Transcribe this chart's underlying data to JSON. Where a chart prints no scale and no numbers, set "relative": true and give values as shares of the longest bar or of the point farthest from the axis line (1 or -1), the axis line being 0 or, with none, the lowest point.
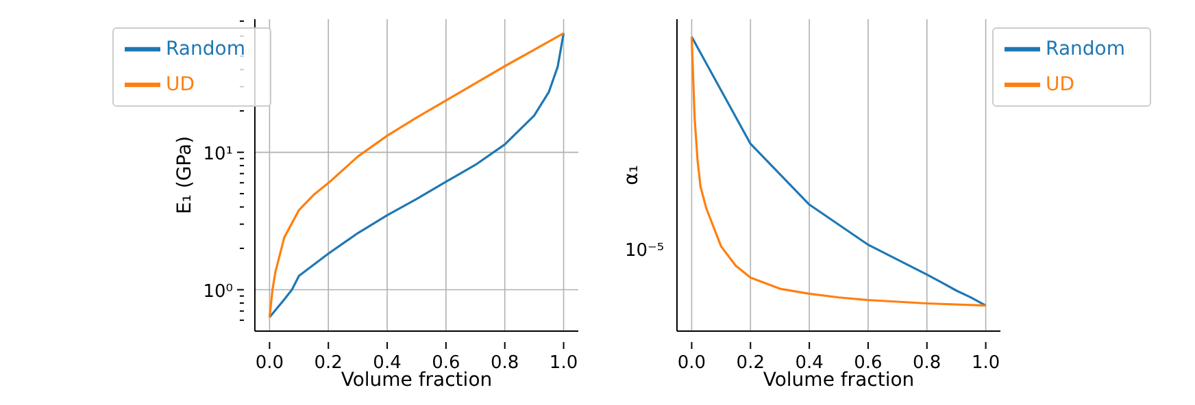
{
  "chart_data": [
    {
      "type": "line",
      "xlabel": "Volume fraction",
      "ylabel": "E₁ (GPa)",
      "log": "y",
      "grid": true,
      "legend": "top left",
      "xlim": [
        -0.05,
        1.05
      ],
      "xticks": [
        {
          "value": 0,
          "label": "0.0"
        },
        {
          "value": 0.2,
          "label": "0.2"
        },
        {
          "value": 0.4,
          "label": "0.4"
        },
        {
          "value": 0.6,
          "label": "0.6"
        },
        {
          "value": 0.8,
          "label": "0.8"
        },
        {
          "value": 1,
          "label": "1.0"
        }
      ],
      "ylim": [
        0.5,
        93
      ],
      "yticks": [
        {
          "value": 0.6,
          "label": null
        },
        {
          "value": 0.7,
          "label": null
        },
        {
          "value": 0.8,
          "label": null
        },
        {
          "value": 0.9,
          "label": null
        },
        {
          "value": 1,
          "label": "10⁰"
        },
        {
          "value": 2,
          "label": null
        },
        {
          "value": 3,
          "label": null
        },
        {
          "value": 4,
          "label": null
        },
        {
          "value": 5,
          "label": null
        },
        {
          "value": 6,
          "label": null
        },
        {
          "value": 7,
          "label": null
        },
        {
          "value": 8,
          "label": null
        },
        {
          "value": 9,
          "label": null
        },
        {
          "value": 10,
          "label": "10¹"
        },
        {
          "value": 20,
          "label": null
        },
        {
          "value": 30,
          "label": null
        },
        {
          "value": 40,
          "label": null
        },
        {
          "value": 50,
          "label": null
        },
        {
          "value": 60,
          "label": null
        },
        {
          "value": 70,
          "label": null
        },
        {
          "value": 80,
          "label": null
        },
        {
          "value": 90,
          "label": null
        }
      ],
      "series": [
        {
          "name": "Random",
          "color": "#1f77b4",
          "x": [
            0,
            0.05,
            0.076,
            0.1,
            0.2,
            0.3,
            0.4,
            0.5,
            0.6,
            0.7,
            0.8,
            0.9,
            0.95,
            0.98,
            1
          ],
          "values": [
            0.63,
            0.85,
            1,
            1.26,
            1.83,
            2.58,
            3.48,
            4.57,
            6.1,
            8.1,
            11.4,
            18.5,
            27.5,
            42,
            73.5
          ]
        },
        {
          "name": "UD",
          "color": "#ff7f0e",
          "x": [
            0,
            0.01,
            0.02,
            0.05,
            0.1,
            0.15,
            0.2,
            0.3,
            0.4,
            0.5,
            0.6,
            0.8,
            1
          ],
          "values": [
            0.63,
            1.0,
            1.35,
            2.4,
            3.8,
            4.9,
            5.97,
            9.3,
            13.2,
            17.9,
            23.8,
            42.3,
            73.5
          ]
        }
      ]
    },
    {
      "type": "line",
      "xlabel": "Volume fraction",
      "ylabel": "α₁",
      "grid": true,
      "legend": "top right",
      "relative": true,
      "xlim": [
        -0.05,
        1.05
      ],
      "xticks": [
        {
          "value": 0,
          "label": "0.0"
        },
        {
          "value": 0.2,
          "label": "0.2"
        },
        {
          "value": 0.4,
          "label": "0.4"
        },
        {
          "value": 0.6,
          "label": "0.6"
        },
        {
          "value": 0.8,
          "label": "0.8"
        },
        {
          "value": 1,
          "label": "1.0"
        }
      ],
      "annotations": [
        "10⁻⁵"
      ],
      "series": [
        {
          "name": "Random",
          "color": "#1f77b4",
          "x": [
            0,
            0.2,
            0.4,
            0.6,
            0.8,
            0.85,
            0.9,
            0.95,
            1
          ],
          "values": [
            1,
            0.6365,
            0.43,
            0.2935,
            0.192,
            0.1655,
            0.1377,
            0.1143,
            0.0869
          ]
        },
        {
          "name": "UD",
          "color": "#ff7f0e",
          "x": [
            0,
            0.01,
            0.02,
            0.03,
            0.05,
            0.1,
            0.15,
            0.2,
            0.3,
            0.4,
            0.5,
            0.6,
            0.8,
            1
          ],
          "values": [
            1,
            0.725,
            0.58,
            0.491,
            0.416,
            0.288,
            0.222,
            0.1817,
            0.144,
            0.127,
            0.1145,
            0.1056,
            0.0942,
            0.0869
          ]
        }
      ]
    }
  ]
}
